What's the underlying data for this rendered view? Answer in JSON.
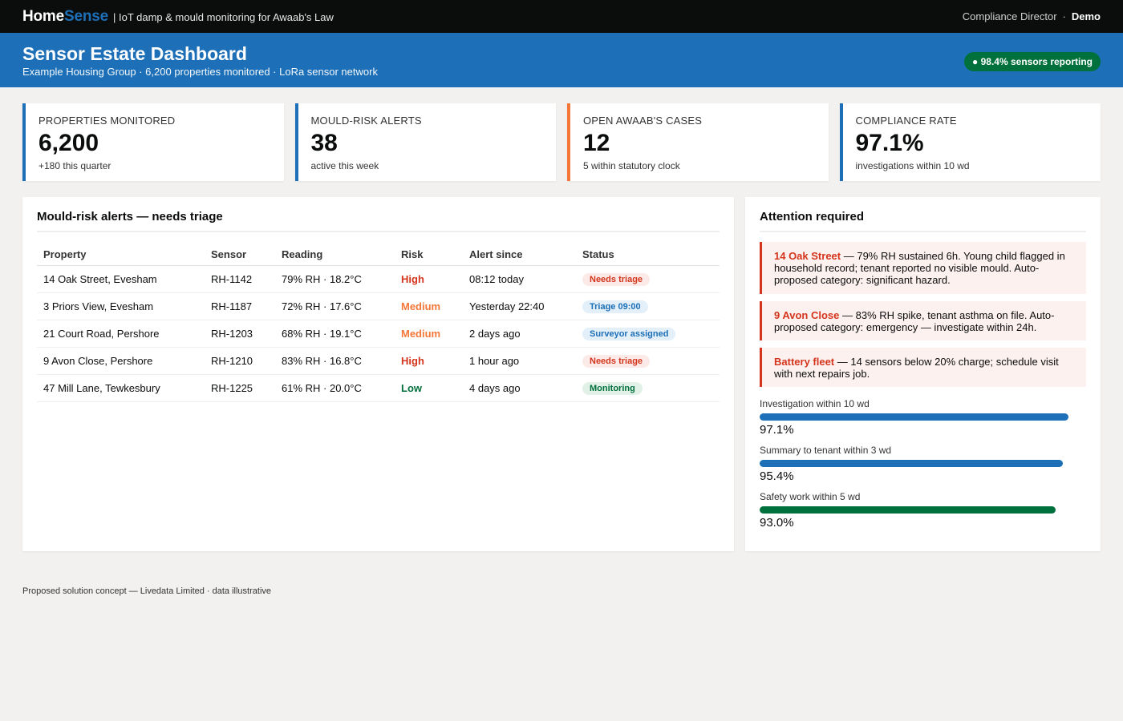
{
  "topbar": {
    "brand_home": "Home",
    "brand_sense": "Sense",
    "tagline": "| IoT damp & mould monitoring for Awaab's Law",
    "user_role": "Compliance Director",
    "separator": "·",
    "mode": "Demo"
  },
  "hero": {
    "title": "Sensor Estate Dashboard",
    "subtitle": "Example Housing Group · 6,200 properties monitored · LoRa sensor network",
    "status_pill": "● 98.4% sensors reporting"
  },
  "kpis": [
    {
      "label": "PROPERTIES MONITORED",
      "value": "6,200",
      "note": "+180 this quarter"
    },
    {
      "label": "MOULD-RISK ALERTS",
      "value": "38",
      "note": "active this week"
    },
    {
      "label": "OPEN AWAAB'S CASES",
      "value": "12",
      "note": "5 within statutory clock"
    },
    {
      "label": "COMPLIANCE RATE",
      "value": "97.1%",
      "note": "investigations within 10 wd"
    }
  ],
  "alerts_table": {
    "title": "Mould-risk alerts — needs triage",
    "columns": [
      "Property",
      "Sensor",
      "Reading",
      "Risk",
      "Alert since",
      "Status"
    ],
    "rows": [
      {
        "property": "14 Oak Street, Evesham",
        "sensor": "RH-1142",
        "reading": "79% RH · 18.2°C",
        "risk": "High",
        "since": "08:12 today",
        "status": "Needs triage"
      },
      {
        "property": "3 Priors View, Evesham",
        "sensor": "RH-1187",
        "reading": "72% RH · 17.6°C",
        "risk": "Medium",
        "since": "Yesterday 22:40",
        "status": "Triage 09:00"
      },
      {
        "property": "21 Court Road, Pershore",
        "sensor": "RH-1203",
        "reading": "68% RH · 19.1°C",
        "risk": "Medium",
        "since": "2 days ago",
        "status": "Surveyor assigned"
      },
      {
        "property": "9 Avon Close, Pershore",
        "sensor": "RH-1210",
        "reading": "83% RH · 16.8°C",
        "risk": "High",
        "since": "1 hour ago",
        "status": "Needs triage"
      },
      {
        "property": "47 Mill Lane, Tewkesbury",
        "sensor": "RH-1225",
        "reading": "61% RH · 20.0°C",
        "risk": "Low",
        "since": "4 days ago",
        "status": "Monitoring"
      }
    ]
  },
  "attention": {
    "title": "Attention required",
    "items": [
      {
        "head": "14 Oak Street",
        "text": " — 79% RH sustained 6h. Young child flagged in household record; tenant reported no visible mould. Auto-proposed category: significant hazard."
      },
      {
        "head": "9 Avon Close",
        "text": " — 83% RH spike, tenant asthma on file. Auto-proposed category: emergency — investigate within 24h."
      },
      {
        "head": "Battery fleet",
        "text": " — 14 sensors below 20% charge; schedule visit with next repairs job."
      }
    ],
    "metrics": [
      {
        "label": "Investigation within 10 wd",
        "value": "97.1%",
        "fraction": 0.971,
        "color": "#1d70b8"
      },
      {
        "label": "Summary to tenant within 3 wd",
        "value": "95.4%",
        "fraction": 0.954,
        "color": "#1d70b8"
      },
      {
        "label": "Safety work within 5 wd",
        "value": "93.0%",
        "fraction": 0.93,
        "color": "#00703c"
      }
    ]
  },
  "footer": {
    "text": "Proposed solution concept — Livedata Limited · data illustrative"
  }
}
